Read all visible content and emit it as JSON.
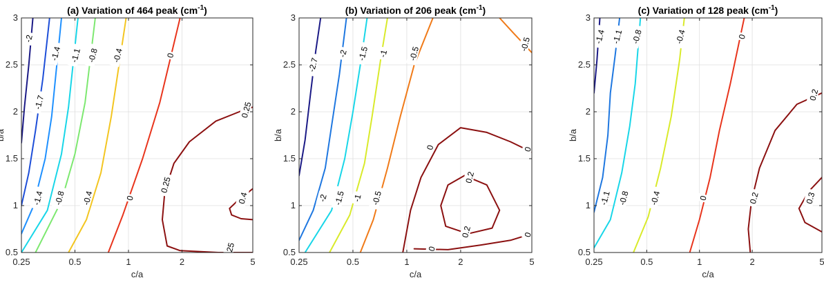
{
  "chart_data": [
    {
      "type": "contour",
      "title": "(a) Variation of 464 peak (cm",
      "title_sup": "-1",
      "title_end": ")",
      "xlabel": "c/a",
      "ylabel": "b/a",
      "xscale": "log",
      "xlim": [
        0.25,
        5
      ],
      "ylim": [
        0.5,
        3
      ],
      "xticks": [
        0.25,
        0.5,
        1,
        2,
        5
      ],
      "xtick_labels": [
        "0.25",
        "0.5",
        "1",
        "2",
        "5"
      ],
      "yticks": [
        0.5,
        1,
        1.5,
        2,
        2.5,
        3
      ],
      "ytick_labels": [
        "0.5",
        "1",
        "1.5",
        "2",
        "2.5",
        "3"
      ],
      "grid": true,
      "contours": [
        {
          "level": "-2",
          "color": "#1b1a86",
          "points": [
            [
              0.25,
              1.67
            ],
            [
              0.26,
              2.05
            ],
            [
              0.275,
              2.5
            ],
            [
              0.29,
              3.0
            ]
          ],
          "labels": [
            [
              0.275,
              2.78
            ]
          ]
        },
        {
          "level": "-1.7",
          "color": "#1d4ed8",
          "points": [
            [
              0.25,
              1.0
            ],
            [
              0.275,
              1.35
            ],
            [
              0.3,
              1.8
            ],
            [
              0.33,
              2.35
            ],
            [
              0.36,
              3.0
            ]
          ],
          "labels": [
            [
              0.315,
              2.1
            ]
          ]
        },
        {
          "level": "-1.4",
          "color": "#1e90ff",
          "points": [
            [
              0.25,
              0.7
            ],
            [
              0.29,
              0.98
            ],
            [
              0.34,
              1.5
            ],
            [
              0.37,
              1.95
            ],
            [
              0.42,
              3.0
            ]
          ],
          "labels": [
            [
              0.31,
              1.08
            ],
            [
              0.39,
              2.62
            ]
          ]
        },
        {
          "level": "-1.1",
          "color": "#18d6e8",
          "points": [
            [
              0.25,
              0.5
            ],
            [
              0.35,
              0.95
            ],
            [
              0.42,
              1.55
            ],
            [
              0.46,
              2.05
            ],
            [
              0.52,
              3.0
            ]
          ],
          "labels": [
            [
              0.505,
              2.6
            ]
          ]
        },
        {
          "level": "-0.8",
          "color": "#7de870",
          "points": [
            [
              0.3,
              0.5
            ],
            [
              0.42,
              1.05
            ],
            [
              0.5,
              1.55
            ],
            [
              0.57,
              2.1
            ],
            [
              0.65,
              3.0
            ]
          ],
          "labels": [
            [
              0.41,
              1.08
            ],
            [
              0.63,
              2.6
            ]
          ]
        },
        {
          "level": "-0.4",
          "color": "#f3c520",
          "points": [
            [
              0.46,
              0.5
            ],
            [
              0.58,
              0.85
            ],
            [
              0.7,
              1.35
            ],
            [
              0.8,
              1.95
            ],
            [
              0.97,
              3.0
            ]
          ],
          "labels": [
            [
              0.59,
              1.08
            ],
            [
              0.87,
              2.6
            ]
          ]
        },
        {
          "level": "0",
          "color": "#e8341c",
          "points": [
            [
              0.77,
              0.5
            ],
            [
              0.93,
              0.9
            ],
            [
              1.2,
              1.5
            ],
            [
              1.5,
              2.1
            ],
            [
              1.95,
              3.0
            ]
          ],
          "labels": [
            [
              1.02,
              1.08
            ],
            [
              1.72,
              2.6
            ]
          ]
        },
        {
          "level": "0.25",
          "color": "#8b1010",
          "points": [
            [
              5.0,
              0.5
            ],
            [
              3.2,
              0.5
            ],
            [
              1.95,
              0.52
            ],
            [
              1.65,
              0.57
            ],
            [
              1.55,
              0.85
            ],
            [
              1.6,
              1.15
            ],
            [
              1.8,
              1.45
            ],
            [
              2.2,
              1.68
            ],
            [
              3.1,
              1.9
            ],
            [
              4.2,
              2.0
            ],
            [
              5.0,
              2.05
            ]
          ],
          "labels": [
            [
              1.62,
              1.22
            ],
            [
              3.7,
              0.52
            ],
            [
              4.6,
              2.02
            ]
          ]
        },
        {
          "level": "0.4",
          "color": "#8b1010",
          "points": [
            [
              5.0,
              1.18
            ],
            [
              4.1,
              1.05
            ],
            [
              3.7,
              0.97
            ],
            [
              3.8,
              0.9
            ],
            [
              4.3,
              0.86
            ],
            [
              5.0,
              0.85
            ]
          ],
          "labels": [
            [
              4.4,
              1.08
            ]
          ]
        }
      ]
    },
    {
      "type": "contour",
      "title": "(b) Variation of 206 peak (cm",
      "title_sup": "-1",
      "title_end": ")",
      "xlabel": "c/a",
      "ylabel": "b/a",
      "xscale": "log",
      "xlim": [
        0.25,
        5
      ],
      "ylim": [
        0.5,
        3
      ],
      "xticks": [
        0.25,
        0.5,
        1,
        2,
        5
      ],
      "xtick_labels": [
        "0.25",
        "0.5",
        "1",
        "2",
        "5"
      ],
      "yticks": [
        0.5,
        1,
        1.5,
        2,
        2.5,
        3
      ],
      "ytick_labels": [
        "0.5",
        "1",
        "1.5",
        "2",
        "2.5",
        "3"
      ],
      "grid": true,
      "contours": [
        {
          "level": "-2.7",
          "color": "#1b1a86",
          "points": [
            [
              0.25,
              1.32
            ],
            [
              0.27,
              1.7
            ],
            [
              0.29,
              2.2
            ],
            [
              0.31,
              2.65
            ],
            [
              0.33,
              3.0
            ]
          ],
          "labels": [
            [
              0.3,
              2.5
            ]
          ]
        },
        {
          "level": "-2",
          "color": "#1e77e0",
          "points": [
            [
              0.25,
              0.63
            ],
            [
              0.3,
              0.95
            ],
            [
              0.35,
              1.4
            ],
            [
              0.38,
              1.85
            ],
            [
              0.42,
              2.4
            ],
            [
              0.46,
              3.0
            ]
          ],
          "labels": [
            [
              0.34,
              1.08
            ],
            [
              0.44,
              2.62
            ]
          ]
        },
        {
          "level": "-1.5",
          "color": "#18d6e8",
          "points": [
            [
              0.27,
              0.5
            ],
            [
              0.38,
              0.95
            ],
            [
              0.45,
              1.5
            ],
            [
              0.5,
              2.0
            ],
            [
              0.55,
              2.5
            ],
            [
              0.6,
              3.0
            ]
          ],
          "labels": [
            [
              0.42,
              1.08
            ],
            [
              0.57,
              2.62
            ]
          ]
        },
        {
          "level": "-1",
          "color": "#d9ea2a",
          "points": [
            [
              0.37,
              0.5
            ],
            [
              0.48,
              0.9
            ],
            [
              0.58,
              1.45
            ],
            [
              0.64,
              1.95
            ],
            [
              0.72,
              2.6
            ],
            [
              0.78,
              3.0
            ]
          ],
          "labels": [
            [
              0.53,
              1.08
            ],
            [
              0.74,
              2.62
            ]
          ]
        },
        {
          "level": "-0.5",
          "color": "#f07a18",
          "points": [
            [
              0.55,
              0.5
            ],
            [
              0.65,
              0.85
            ],
            [
              0.78,
              1.4
            ],
            [
              0.92,
              1.95
            ],
            [
              1.1,
              2.5
            ],
            [
              1.4,
              3.0
            ]
          ],
          "labels": [
            [
              0.68,
              1.08
            ],
            [
              1.1,
              2.62
            ]
          ]
        },
        {
          "level": "-0.5",
          "color": "#f07a18",
          "points": [
            [
              3.3,
              3.0
            ],
            [
              3.9,
              2.85
            ],
            [
              5.0,
              2.63
            ]
          ],
          "labels": [
            [
              4.6,
              2.72
            ]
          ]
        },
        {
          "level": "0",
          "color": "#8b1010",
          "points": [
            [
              0.95,
              0.5
            ],
            [
              1.05,
              0.95
            ],
            [
              1.2,
              1.3
            ],
            [
              1.5,
              1.65
            ],
            [
              2.0,
              1.83
            ],
            [
              2.8,
              1.78
            ],
            [
              3.8,
              1.68
            ],
            [
              5.0,
              1.57
            ]
          ],
          "labels": [
            [
              1.35,
              1.62
            ],
            [
              4.75,
              1.6
            ]
          ]
        },
        {
          "level": "0",
          "color": "#8b1010",
          "points": [
            [
              1.1,
              0.54
            ],
            [
              1.7,
              0.53
            ],
            [
              2.6,
              0.58
            ],
            [
              3.8,
              0.63
            ],
            [
              5.0,
              0.7
            ]
          ],
          "labels": [
            [
              1.38,
              0.54
            ],
            [
              4.75,
              0.69
            ]
          ]
        },
        {
          "level": "0.2",
          "color": "#8b1010",
          "points": [
            [
              2.1,
              1.32
            ],
            [
              2.8,
              1.22
            ],
            [
              3.3,
              0.95
            ],
            [
              3.0,
              0.76
            ],
            [
              2.2,
              0.7
            ],
            [
              1.65,
              0.78
            ],
            [
              1.55,
              1.0
            ],
            [
              1.7,
              1.22
            ],
            [
              2.1,
              1.32
            ]
          ],
          "labels": [
            [
              2.25,
              1.3
            ],
            [
              2.15,
              0.72
            ]
          ]
        }
      ]
    },
    {
      "type": "contour",
      "title": "(c) Variation of 128 peak (cm",
      "title_sup": "-1",
      "title_end": ")",
      "xlabel": "c/a",
      "ylabel": "b/a",
      "xscale": "log",
      "xlim": [
        0.25,
        5
      ],
      "ylim": [
        0.5,
        3
      ],
      "xticks": [
        0.25,
        0.5,
        1,
        2,
        5
      ],
      "xtick_labels": [
        "0.25",
        "0.5",
        "1",
        "2",
        "5"
      ],
      "yticks": [
        0.5,
        1,
        1.5,
        2,
        2.5,
        3
      ],
      "ytick_labels": [
        "0.5",
        "1",
        "1.5",
        "2",
        "2.5",
        "3"
      ],
      "grid": true,
      "contours": [
        {
          "level": "-1.4",
          "color": "#1b1a86",
          "points": [
            [
              0.25,
              2.2
            ],
            [
              0.26,
              2.55
            ],
            [
              0.27,
              3.0
            ]
          ],
          "labels": [
            [
              0.27,
              2.8
            ]
          ]
        },
        {
          "level": "-1.1",
          "color": "#1e77e0",
          "points": [
            [
              0.25,
              0.93
            ],
            [
              0.28,
              1.3
            ],
            [
              0.3,
              1.75
            ],
            [
              0.31,
              2.2
            ],
            [
              0.33,
              2.6
            ],
            [
              0.35,
              3.0
            ]
          ],
          "labels": [
            [
              0.29,
              1.08
            ],
            [
              0.34,
              2.8
            ]
          ]
        },
        {
          "level": "-0.8",
          "color": "#18d6e8",
          "points": [
            [
              0.25,
              0.55
            ],
            [
              0.31,
              0.85
            ],
            [
              0.36,
              1.35
            ],
            [
              0.4,
              1.85
            ],
            [
              0.43,
              2.3
            ],
            [
              0.46,
              3.0
            ]
          ],
          "labels": [
            [
              0.37,
              1.08
            ],
            [
              0.44,
              2.8
            ]
          ]
        },
        {
          "level": "-0.4",
          "color": "#d9ea2a",
          "points": [
            [
              0.42,
              0.5
            ],
            [
              0.51,
              0.88
            ],
            [
              0.6,
              1.4
            ],
            [
              0.69,
              1.95
            ],
            [
              0.77,
              2.55
            ],
            [
              0.82,
              3.0
            ]
          ],
          "labels": [
            [
              0.56,
              1.08
            ],
            [
              0.78,
              2.8
            ]
          ]
        },
        {
          "level": "0",
          "color": "#e8341c",
          "points": [
            [
              0.88,
              0.5
            ],
            [
              1.0,
              0.85
            ],
            [
              1.15,
              1.3
            ],
            [
              1.3,
              1.8
            ],
            [
              1.5,
              2.3
            ],
            [
              1.8,
              3.0
            ]
          ],
          "labels": [
            [
              1.05,
              1.08
            ],
            [
              1.75,
              2.8
            ]
          ]
        },
        {
          "level": "0.2",
          "color": "#8b1010",
          "points": [
            [
              1.95,
              0.5
            ],
            [
              1.9,
              0.75
            ],
            [
              1.98,
              1.05
            ],
            [
              2.2,
              1.4
            ],
            [
              2.7,
              1.8
            ],
            [
              3.6,
              2.08
            ],
            [
              5.0,
              2.2
            ]
          ],
          "labels": [
            [
              2.05,
              1.08
            ],
            [
              4.5,
              2.18
            ]
          ]
        },
        {
          "level": "0.3",
          "color": "#8b1010",
          "points": [
            [
              5.0,
              1.3
            ],
            [
              4.2,
              1.15
            ],
            [
              3.7,
              0.97
            ],
            [
              4.0,
              0.82
            ],
            [
              5.0,
              0.72
            ]
          ],
          "labels": [
            [
              4.3,
              1.08
            ]
          ]
        }
      ]
    }
  ]
}
